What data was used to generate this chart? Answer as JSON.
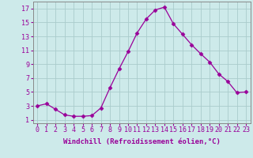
{
  "x": [
    0,
    1,
    2,
    3,
    4,
    5,
    6,
    7,
    8,
    9,
    10,
    11,
    12,
    13,
    14,
    15,
    16,
    17,
    18,
    19,
    20,
    21,
    22,
    23
  ],
  "y": [
    3.0,
    3.3,
    2.5,
    1.7,
    1.5,
    1.5,
    1.6,
    2.7,
    5.6,
    8.3,
    10.8,
    13.5,
    15.5,
    16.8,
    17.2,
    14.8,
    13.3,
    11.8,
    10.5,
    9.3,
    7.6,
    6.5,
    4.9,
    5.0
  ],
  "line_color": "#990099",
  "marker": "D",
  "marker_size": 2.5,
  "background_color": "#cdeaea",
  "grid_color": "#aacccc",
  "xlabel": "Windchill (Refroidissement éolien,°C)",
  "ylabel_ticks": [
    1,
    3,
    5,
    7,
    9,
    11,
    13,
    15,
    17
  ],
  "xlim": [
    -0.5,
    23.5
  ],
  "ylim": [
    0.5,
    18.0
  ],
  "xtick_labels": [
    "0",
    "1",
    "2",
    "3",
    "4",
    "5",
    "6",
    "7",
    "8",
    "9",
    "10",
    "11",
    "12",
    "13",
    "14",
    "15",
    "16",
    "17",
    "18",
    "19",
    "20",
    "21",
    "22",
    "23"
  ],
  "label_fontsize": 6.5,
  "tick_fontsize": 6.0
}
